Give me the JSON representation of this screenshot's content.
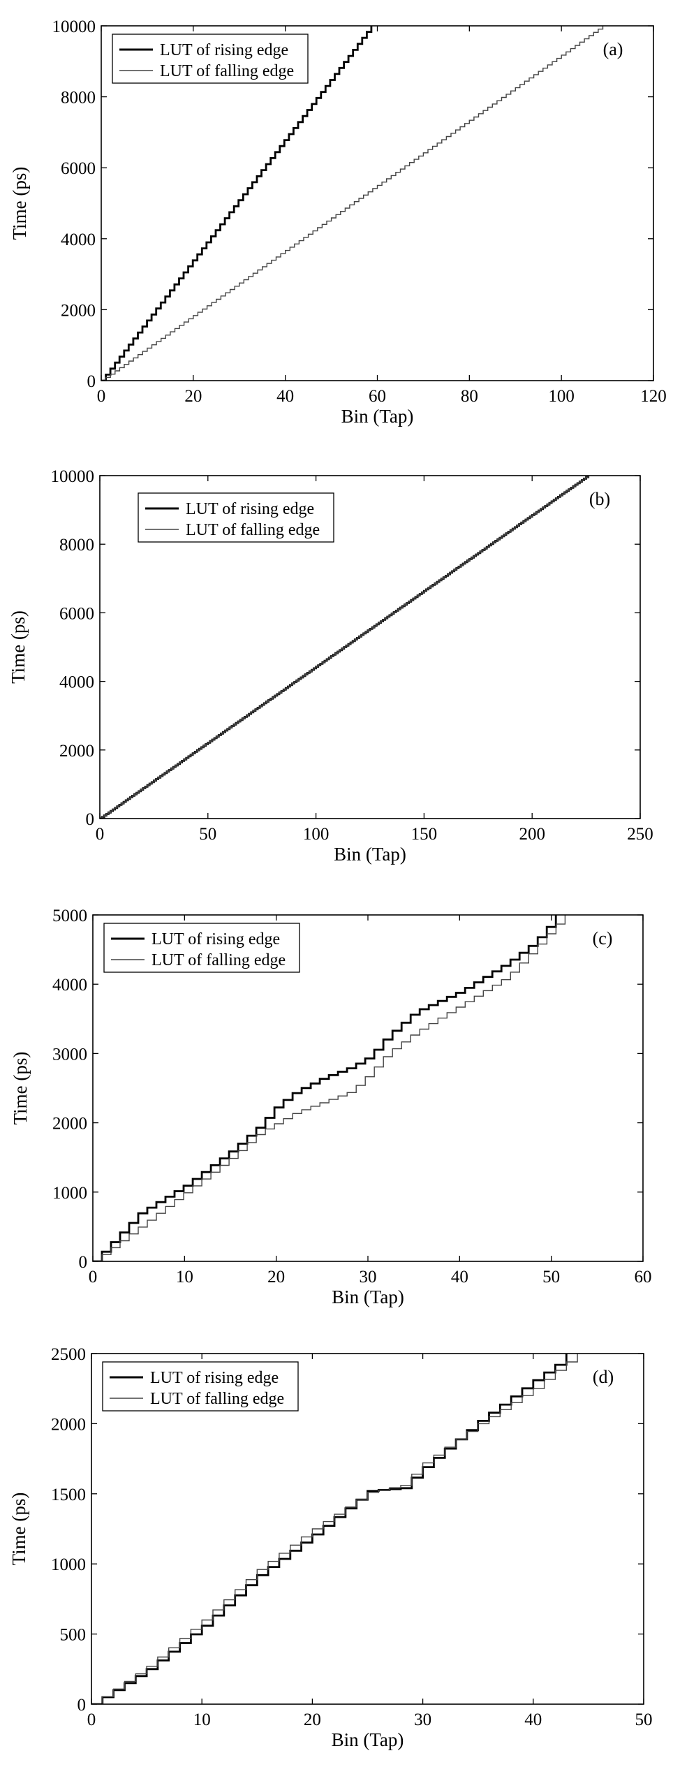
{
  "chart_data": [
    {
      "type": "line",
      "panel_label": "(a)",
      "xlabel": "Bin (Tap)",
      "ylabel": "Time (ps)",
      "xlim": [
        0,
        120
      ],
      "ylim": [
        0,
        10000
      ],
      "xticks": [
        0,
        20,
        40,
        60,
        80,
        100,
        120
      ],
      "yticks": [
        0,
        2000,
        4000,
        6000,
        8000,
        10000
      ],
      "legend_position": "top-left",
      "series": [
        {
          "name": "LUT of rising edge",
          "style": "thick",
          "step": true,
          "x": [
            0,
            58.7
          ],
          "y": [
            0,
            10000
          ]
        },
        {
          "name": "LUT of falling edge",
          "style": "thin",
          "step": true,
          "x": [
            0,
            109
          ],
          "y": [
            0,
            10000
          ]
        }
      ]
    },
    {
      "type": "line",
      "panel_label": "(b)",
      "xlabel": "Bin (Tap)",
      "ylabel": "Time (ps)",
      "xlim": [
        0,
        250
      ],
      "ylim": [
        0,
        10000
      ],
      "xticks": [
        0,
        50,
        100,
        150,
        200,
        250
      ],
      "yticks": [
        0,
        2000,
        4000,
        6000,
        8000,
        10000
      ],
      "legend_position": "top-left",
      "series": [
        {
          "name": "LUT of rising edge",
          "style": "thick",
          "step": true,
          "x": [
            0,
            226
          ],
          "y": [
            0,
            10000
          ]
        },
        {
          "name": "LUT of falling edge",
          "style": "thin",
          "step": true,
          "x": [
            0,
            226
          ],
          "y": [
            0,
            10000
          ]
        }
      ]
    },
    {
      "type": "line",
      "panel_label": "(c)",
      "xlabel": "Bin (Tap)",
      "ylabel": "Time (ps)",
      "xlim": [
        0,
        60
      ],
      "ylim": [
        0,
        5000
      ],
      "xticks": [
        0,
        10,
        20,
        30,
        40,
        50,
        60
      ],
      "yticks": [
        0,
        1000,
        2000,
        3000,
        4000,
        5000
      ],
      "legend_position": "top-left",
      "series": [
        {
          "name": "LUT of rising edge",
          "style": "thick",
          "step": true,
          "x": [
            0,
            5,
            10,
            15,
            18,
            20,
            22,
            25,
            28,
            30,
            32,
            35,
            40,
            45,
            48,
            50,
            50.5
          ],
          "y": [
            0,
            700,
            1100,
            1600,
            1950,
            2250,
            2450,
            2650,
            2800,
            2950,
            3250,
            3600,
            3900,
            4300,
            4600,
            4900,
            5000
          ]
        },
        {
          "name": "LUT of falling edge",
          "style": "thin",
          "step": true,
          "x": [
            0,
            5,
            10,
            15,
            18,
            20,
            22,
            25,
            28,
            30,
            32,
            35,
            40,
            45,
            48,
            50,
            51.5
          ],
          "y": [
            0,
            500,
            1000,
            1500,
            1850,
            2000,
            2150,
            2300,
            2450,
            2700,
            3000,
            3300,
            3700,
            4100,
            4500,
            4800,
            5000
          ]
        }
      ]
    },
    {
      "type": "line",
      "panel_label": "(d)",
      "xlabel": "Bin (Tap)",
      "ylabel": "Time (ps)",
      "xlim": [
        0,
        50
      ],
      "ylim": [
        0,
        2500
      ],
      "xticks": [
        0,
        10,
        20,
        30,
        40,
        50
      ],
      "yticks": [
        0,
        500,
        1000,
        1500,
        2000,
        2500
      ],
      "legend_position": "top-left",
      "series": [
        {
          "name": "LUT of rising edge",
          "style": "thick",
          "step": true,
          "x": [
            0,
            5,
            10,
            15,
            20,
            25,
            28,
            30,
            35,
            40,
            42,
            43
          ],
          "y": [
            0,
            250,
            560,
            920,
            1210,
            1520,
            1540,
            1690,
            2020,
            2310,
            2420,
            2500
          ]
        },
        {
          "name": "LUT of falling edge",
          "style": "thin",
          "step": true,
          "x": [
            0,
            5,
            10,
            15,
            20,
            25,
            28,
            30,
            35,
            40,
            42,
            44
          ],
          "y": [
            0,
            270,
            600,
            960,
            1250,
            1510,
            1560,
            1720,
            2000,
            2250,
            2380,
            2500
          ]
        }
      ]
    }
  ]
}
